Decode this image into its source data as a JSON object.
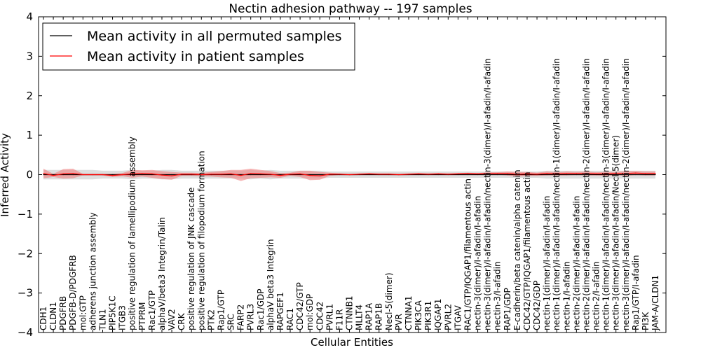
{
  "chart_data": {
    "type": "line",
    "title": "Nectin adhesion pathway -- 197 samples",
    "xlabel": "Cellular Entities",
    "ylabel": "Inferred Activity",
    "ylim": [
      -4,
      4
    ],
    "yticks": [
      -4,
      -3,
      -2,
      -1,
      0,
      1,
      2,
      3,
      4
    ],
    "grid": false,
    "legend_position": "top-left",
    "colors": {
      "permuted": "#000000",
      "patient": "#ff0000",
      "patient_band": "#f08080",
      "permuted_band": "#c8c8c8"
    },
    "categories": [
      "CDH1",
      "CLDN1",
      "PDGFRB",
      "PDGFB-D/PDGFRB",
      "mol:GTP",
      "adherens junction assembly",
      "TLN1",
      "PIP5K1C",
      "ITGB3",
      "positive regulation of lamellipodium assembly",
      "PTPRM",
      "Rac1/GTP",
      "alphaV/beta3 Integrin/Talin",
      "VAV2",
      "CRK",
      "positive regulation of JNK cascade",
      "positive regulation of filopodium formation",
      "PTK2",
      "Rap1/GTP",
      "SRC",
      "FARP2",
      "PVRL3",
      "Rac1/GDP",
      "alphaV beta3 Integrin",
      "RAPGEF1",
      "RAC1",
      "CDC42/GTP",
      "mol:GDP",
      "CDC42",
      "PVRL1",
      "F11R",
      "CTNNB1",
      "MLLT4",
      "RAP1A",
      "RAP1B",
      "Necl-5(dimer)",
      "PVR",
      "CTNNA1",
      "PIK3CA",
      "PIK3R1",
      "IQGAP1",
      "PVRL2",
      "ITGAV",
      "RAC1/GTP/IQGAP1/filamentous actin",
      "nectin-3(dimer)/I-afadin/I-afadin",
      "nectin-3(dimer)/I-afadin/I-afadin/nectin-3(dimer)/I-afadin/I-afadin",
      "nectin-3/I-afadin",
      "RAP1/GDP",
      "E-cadherin/beta catenin/alpha catenin",
      "CDC42/GTP/IQGAP1/filamentous actin",
      "CDC42/GDP",
      "nectin-1(dimer)/I-afadin/I-afadin",
      "nectin-1(dimer)/I-afadin/I-afadin/nectin-1(dimer)/I-afadin/I-afadin",
      "nectin-1/I-afadin",
      "nectin-2(dimer)/I-afadin/I-afadin",
      "nectin-2(dimer)/I-afadin/I-afadin/nectin-2(dimer)/I-afadin/I-afadin",
      "nectin-2/I-afadin",
      "nectin-1(dimer)/I-afadin/I-afadin/nectin-3(dimer)/I-afadin/I-afadin",
      "nectin-3(dimer)/I-afadin/I-afadin/Necl-5(dimer)",
      "nectin-3(dimer)/I-afadin/I-afadin/nectin-2(dimer)/I-afadin/I-afadin",
      "Rap1/GTP/I-afadin",
      "PI3K",
      "JAM-A/CLDN1"
    ],
    "series": [
      {
        "name": "Mean activity in all permuted samples",
        "color": "#000000",
        "values": [
          0,
          0,
          0,
          0,
          0,
          0,
          0,
          0,
          0,
          0,
          0,
          0,
          0,
          0,
          0,
          0,
          0,
          0,
          0,
          0,
          0,
          0,
          0,
          0,
          0,
          0,
          0,
          0,
          0,
          0,
          0,
          0,
          0,
          0,
          0,
          0,
          0,
          0,
          0,
          0,
          0,
          0,
          0,
          0,
          0,
          0,
          0,
          0,
          0,
          0,
          0,
          0,
          0,
          0,
          0,
          0,
          0,
          0,
          0,
          0,
          0,
          0,
          0
        ],
        "band": [
          0.12,
          0.12,
          0.12,
          0.12,
          0.12,
          0.12,
          0.1,
          0.1,
          0.1,
          0.12,
          0.1,
          0.1,
          0.12,
          0.12,
          0.1,
          0.1,
          0.1,
          0.1,
          0.1,
          0.1,
          0.1,
          0.12,
          0.1,
          0.12,
          0.1,
          0.1,
          0.1,
          0.1,
          0.1,
          0.08,
          0.08,
          0.08,
          0.08,
          0.08,
          0.08,
          0.08,
          0.08,
          0.08,
          0.08,
          0.08,
          0.08,
          0.08,
          0.08,
          0.08,
          0.08,
          0.08,
          0.08,
          0.08,
          0.08,
          0.08,
          0.08,
          0.1,
          0.1,
          0.1,
          0.1,
          0.1,
          0.1,
          0.1,
          0.1,
          0.1,
          0.1,
          0.1,
          0.1
        ]
      },
      {
        "name": "Mean activity in patient samples",
        "color": "#ff0000",
        "values": [
          0.03,
          -0.02,
          0.02,
          0.03,
          0,
          0,
          0,
          -0.02,
          0,
          0.02,
          0.03,
          0.02,
          -0.01,
          -0.03,
          0.01,
          0.01,
          0,
          0.01,
          0.01,
          0.02,
          -0.02,
          0.03,
          0.02,
          0.01,
          -0.02,
          0.01,
          0.02,
          -0.02,
          -0.03,
          0.01,
          0.01,
          0,
          0.01,
          0.02,
          0.01,
          0.01,
          0,
          0.01,
          0.02,
          0.01,
          0.02,
          0.01,
          0.02,
          0.03,
          0.02,
          0.03,
          0.03,
          0.03,
          0.01,
          0.02,
          0.01,
          0.03,
          0.02,
          0.03,
          0.03,
          0.03,
          0.02,
          0.02,
          0.03,
          0.03,
          0.04,
          0.03,
          0.03
        ],
        "band": [
          0.12,
          0.04,
          0.12,
          0.12,
          0.02,
          0.02,
          0.02,
          0.04,
          0.04,
          0.1,
          0.08,
          0.1,
          0.1,
          0.1,
          0.04,
          0.04,
          0.04,
          0.06,
          0.08,
          0.1,
          0.14,
          0.12,
          0.1,
          0.08,
          0.06,
          0.04,
          0.08,
          0.12,
          0.1,
          0.04,
          0.02,
          0.02,
          0.02,
          0.02,
          0.02,
          0.02,
          0.02,
          0.02,
          0.02,
          0.02,
          0.02,
          0.02,
          0.02,
          0.02,
          0.02,
          0.03,
          0.03,
          0.05,
          0.06,
          0.05,
          0.04,
          0.05,
          0.04,
          0.05,
          0.04,
          0.05,
          0.04,
          0.05,
          0.04,
          0.06,
          0.05,
          0.05,
          0.05
        ]
      }
    ]
  }
}
